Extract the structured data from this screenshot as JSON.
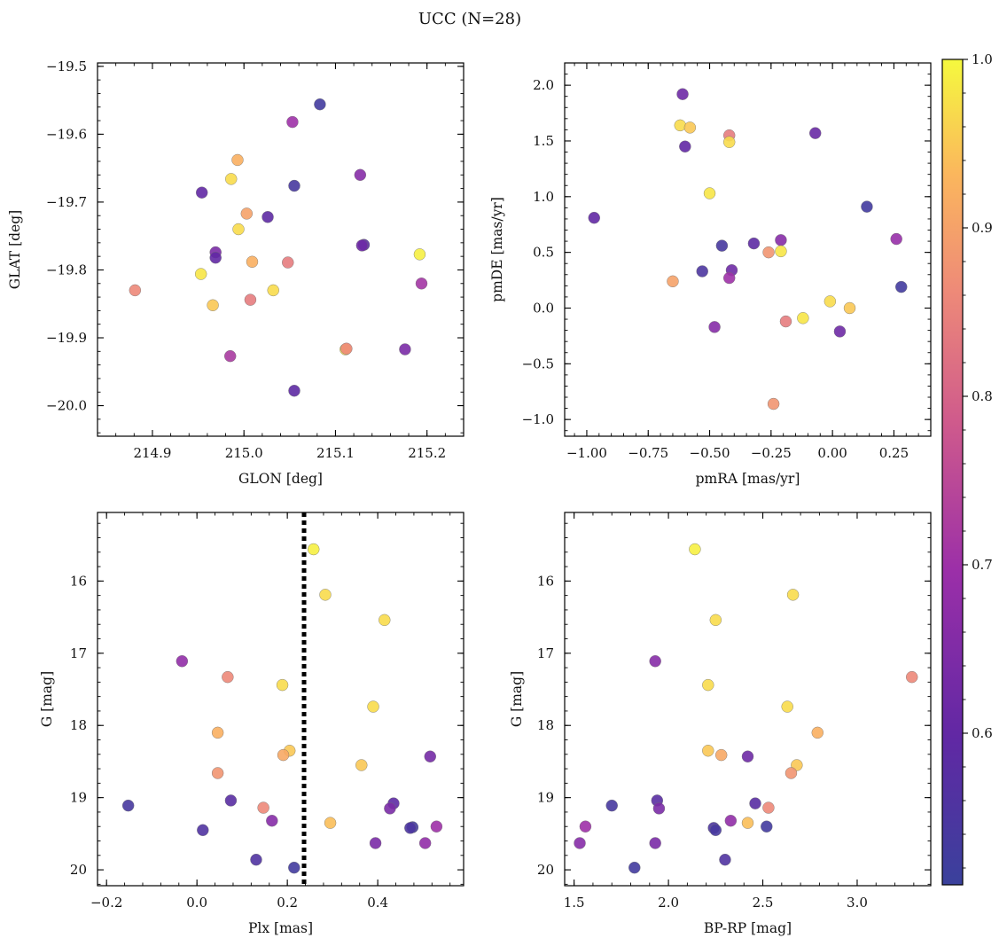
{
  "figure_title": "UCC (N=28)",
  "colorbar": {
    "range": [
      0.51,
      1.0
    ],
    "ticks": [
      "0.6",
      "0.7",
      "0.8",
      "0.9",
      "1.0"
    ],
    "tick_values": [
      0.6,
      0.7,
      0.8,
      0.9,
      1.0
    ],
    "colormap": "plasma"
  },
  "chart_data": [
    {
      "type": "scatter",
      "xlabel": "GLON [deg]",
      "ylabel": "GLAT [deg]",
      "xlim": [
        214.84,
        215.24
      ],
      "ylim": [
        -20.045,
        -19.495
      ],
      "xticks": [
        214.9,
        215.0,
        215.1,
        215.2
      ],
      "xticklabels": [
        "214.9",
        "215.0",
        "215.1",
        "215.2"
      ],
      "yticks": [
        -19.5,
        -19.6,
        -19.7,
        -19.8,
        -19.9,
        -20.0
      ],
      "yticklabels": [
        "−19.5",
        "−19.6",
        "−19.7",
        "−19.8",
        "−19.9",
        "−20.0"
      ],
      "x": [
        215.083,
        215.053,
        214.993,
        214.986,
        215.055,
        214.954,
        215.127,
        215.003,
        215.026,
        214.994,
        214.969,
        214.969,
        215.131,
        215.129,
        215.009,
        215.048,
        215.192,
        214.953,
        215.032,
        214.881,
        215.194,
        215.007,
        214.966,
        215.111,
        215.176,
        215.112,
        214.985,
        215.055
      ],
      "y": [
        -19.556,
        -19.582,
        -19.638,
        -19.666,
        -19.676,
        -19.686,
        -19.66,
        -19.717,
        -19.722,
        -19.74,
        -19.774,
        -19.782,
        -19.763,
        -19.764,
        -19.788,
        -19.789,
        -19.777,
        -19.806,
        -19.83,
        -19.83,
        -19.82,
        -19.844,
        -19.852,
        -19.917,
        -19.917,
        -19.916,
        -19.927,
        -19.978
      ],
      "c": [
        0.53,
        0.7,
        0.92,
        0.97,
        0.54,
        0.6,
        0.66,
        0.9,
        0.59,
        0.97,
        0.64,
        0.6,
        0.58,
        0.62,
        0.92,
        0.84,
        0.99,
        0.98,
        0.97,
        0.86,
        0.71,
        0.84,
        0.95,
        0.97,
        0.64,
        0.86,
        0.72,
        0.59
      ]
    },
    {
      "type": "scatter",
      "xlabel": "pmRA [mas/yr]",
      "ylabel": "pmDE [mas/yr]",
      "xlim": [
        -1.09,
        0.4
      ],
      "ylim": [
        -1.15,
        2.2
      ],
      "xticks": [
        -1.0,
        -0.75,
        -0.5,
        -0.25,
        0.0,
        0.25
      ],
      "xticklabels": [
        "−1.00",
        "−0.75",
        "−0.50",
        "−0.25",
        "0.00",
        "0.25"
      ],
      "yticks": [
        2.0,
        1.5,
        1.0,
        0.5,
        0.0,
        -0.5,
        -1.0
      ],
      "yticklabels": [
        "2.0",
        "1.5",
        "1.0",
        "0.5",
        "0.0",
        "−0.5",
        "−1.0"
      ],
      "x": [
        -0.61,
        -0.62,
        -0.58,
        -0.42,
        -0.6,
        -0.42,
        -0.07,
        -0.5,
        -0.97,
        0.14,
        -0.45,
        -0.32,
        -0.21,
        0.26,
        -0.26,
        -0.21,
        -0.53,
        -0.41,
        -0.42,
        -0.65,
        0.28,
        -0.01,
        0.07,
        -0.12,
        -0.19,
        -0.48,
        0.03,
        -0.24
      ],
      "y": [
        1.92,
        1.64,
        1.62,
        1.55,
        1.45,
        1.49,
        1.57,
        1.03,
        0.81,
        0.91,
        0.56,
        0.58,
        0.61,
        0.62,
        0.5,
        0.51,
        0.33,
        0.34,
        0.27,
        0.24,
        0.19,
        0.06,
        0.0,
        -0.09,
        -0.12,
        -0.17,
        -0.21,
        -0.86
      ],
      "c": [
        0.62,
        0.97,
        0.95,
        0.84,
        0.6,
        0.97,
        0.61,
        0.98,
        0.6,
        0.53,
        0.54,
        0.59,
        0.66,
        0.69,
        0.88,
        0.98,
        0.55,
        0.62,
        0.7,
        0.9,
        0.53,
        0.97,
        0.95,
        0.98,
        0.84,
        0.66,
        0.62,
        0.88
      ]
    },
    {
      "type": "scatter",
      "xlabel": "Plx [mas]",
      "ylabel": "G [mag]",
      "xlim": [
        -0.22,
        0.59
      ],
      "ylim": [
        20.22,
        15.05
      ],
      "xticks": [
        -0.2,
        0.0,
        0.2,
        0.4
      ],
      "xticklabels": [
        "−0.2",
        "0.0",
        "0.2",
        "0.4"
      ],
      "yticks": [
        16,
        17,
        18,
        19,
        20
      ],
      "yticklabels": [
        "16",
        "17",
        "18",
        "19",
        "20"
      ],
      "vline": 0.237,
      "x": [
        0.258,
        0.284,
        0.415,
        -0.033,
        0.068,
        0.189,
        0.39,
        0.046,
        0.205,
        0.191,
        0.364,
        0.516,
        0.046,
        -0.152,
        0.075,
        0.147,
        0.435,
        0.427,
        0.166,
        0.295,
        0.477,
        0.472,
        0.53,
        0.013,
        0.395,
        0.505,
        0.131,
        0.215
      ],
      "y": [
        15.56,
        16.19,
        16.54,
        17.11,
        17.33,
        17.44,
        17.74,
        18.1,
        18.35,
        18.41,
        18.55,
        18.43,
        18.66,
        19.11,
        19.04,
        19.14,
        19.08,
        19.15,
        19.32,
        19.35,
        19.41,
        19.42,
        19.4,
        19.45,
        19.63,
        19.63,
        19.86,
        19.97
      ],
      "c": [
        0.99,
        0.97,
        0.97,
        0.68,
        0.86,
        0.97,
        0.97,
        0.92,
        0.95,
        0.91,
        0.95,
        0.63,
        0.88,
        0.54,
        0.58,
        0.86,
        0.59,
        0.64,
        0.66,
        0.94,
        0.53,
        0.55,
        0.7,
        0.56,
        0.64,
        0.68,
        0.56,
        0.53
      ]
    },
    {
      "type": "scatter",
      "xlabel": "BP-RP [mag]",
      "ylabel": "G [mag]",
      "xlim": [
        1.45,
        3.39
      ],
      "ylim": [
        20.22,
        15.05
      ],
      "xticks": [
        1.5,
        2.0,
        2.5,
        3.0
      ],
      "xticklabels": [
        "1.5",
        "2.0",
        "2.5",
        "3.0"
      ],
      "yticks": [
        16,
        17,
        18,
        19,
        20
      ],
      "yticklabels": [
        "16",
        "17",
        "18",
        "19",
        "20"
      ],
      "x": [
        2.14,
        2.66,
        2.25,
        1.93,
        3.29,
        2.21,
        2.63,
        2.79,
        2.21,
        2.28,
        2.68,
        2.42,
        2.65,
        1.7,
        1.94,
        2.53,
        2.46,
        1.95,
        2.33,
        2.42,
        2.52,
        2.24,
        2.25,
        1.56,
        1.53,
        1.93,
        2.3,
        1.82
      ],
      "y": [
        15.56,
        16.19,
        16.54,
        17.11,
        17.33,
        17.44,
        17.74,
        18.1,
        18.35,
        18.41,
        18.55,
        18.43,
        18.66,
        19.11,
        19.04,
        19.14,
        19.08,
        19.15,
        19.32,
        19.35,
        19.4,
        19.42,
        19.45,
        19.4,
        19.63,
        19.63,
        19.86,
        19.97
      ],
      "c": [
        0.99,
        0.97,
        0.97,
        0.66,
        0.86,
        0.97,
        0.97,
        0.92,
        0.95,
        0.91,
        0.95,
        0.62,
        0.88,
        0.54,
        0.58,
        0.86,
        0.58,
        0.64,
        0.68,
        0.94,
        0.53,
        0.55,
        0.54,
        0.7,
        0.66,
        0.64,
        0.56,
        0.53
      ]
    }
  ]
}
